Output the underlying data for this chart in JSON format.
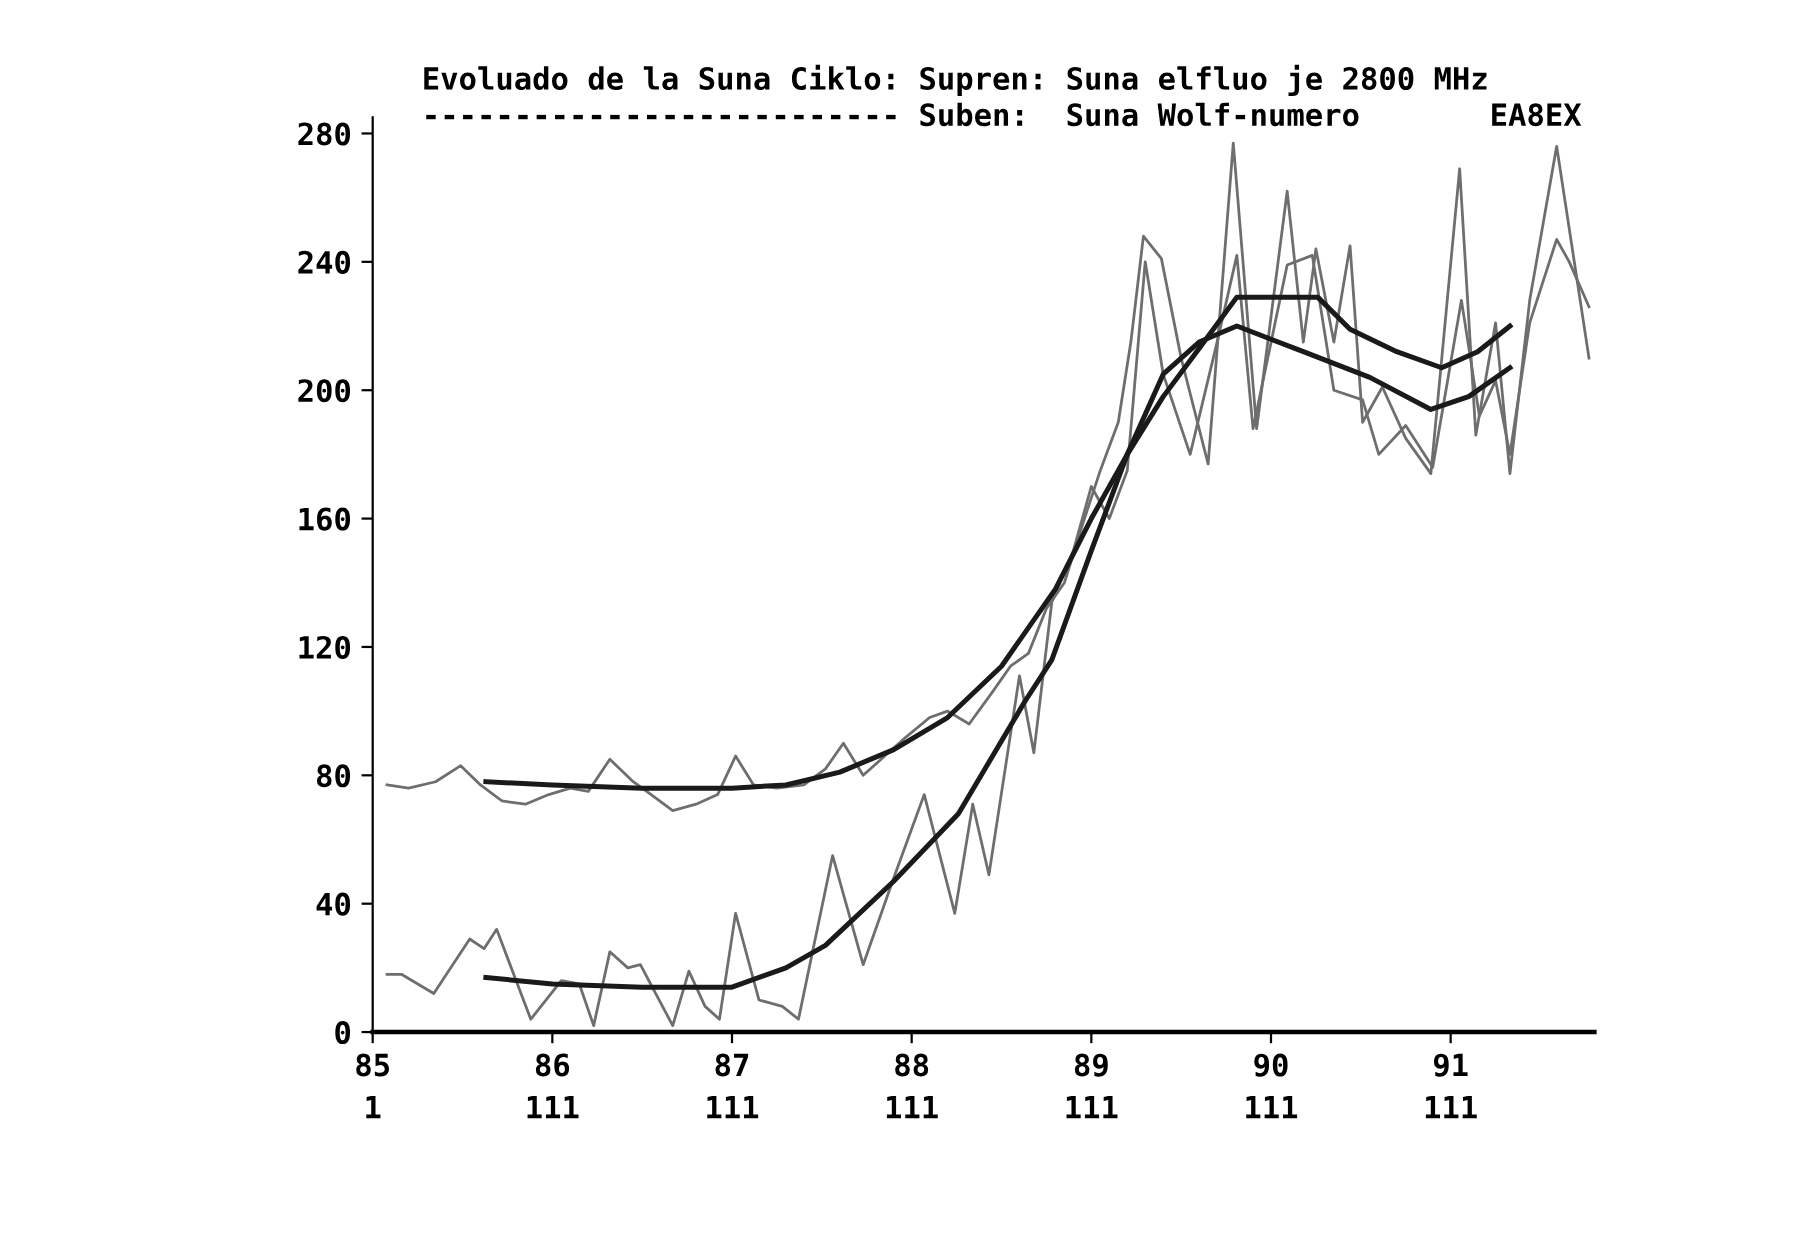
{
  "chart_data": {
    "type": "line",
    "title": "Evoluado de la Suna Ciklo: Supren: Suna elfluo je 2800 MHz",
    "annotations": [
      "-------------------------- Suben:  Suna Wolf-numero",
      "EA8EX",
      "1",
      "111",
      "111",
      "111",
      "111",
      "111",
      "111"
    ],
    "xlim": [
      85,
      91.8
    ],
    "xticks": [
      85,
      86,
      87,
      88,
      89,
      90,
      91
    ],
    "ylim": [
      0,
      285
    ],
    "yticks": [
      0,
      40,
      80,
      120,
      160,
      200,
      240,
      280
    ],
    "grid": false,
    "series": [
      {
        "color": "#6e6e6e",
        "x": [
          85.08,
          85.2,
          85.35,
          85.49,
          85.6,
          85.72,
          85.85,
          85.98,
          86.1,
          86.2,
          86.32,
          86.45,
          86.55,
          86.67,
          86.8,
          86.92,
          87.02,
          87.12,
          87.25,
          87.4,
          87.52,
          87.62,
          87.73,
          87.85,
          87.97,
          88.1,
          88.2,
          88.32,
          88.45,
          88.55,
          88.65,
          88.75,
          88.85,
          88.95,
          89.05,
          89.15,
          89.22,
          89.29,
          89.39,
          89.5,
          89.65,
          89.79,
          89.92,
          90.09,
          90.18,
          90.25,
          90.35,
          90.44,
          90.51,
          90.62,
          90.75,
          90.89,
          91.05,
          91.14,
          91.25,
          91.33,
          91.44,
          91.59,
          91.77
        ],
        "values": [
          77,
          76,
          78,
          83,
          77,
          72,
          71,
          74,
          76,
          75,
          85,
          78,
          74,
          69,
          71,
          74,
          86,
          77,
          76,
          77,
          82,
          90,
          80,
          86,
          92,
          98,
          100,
          96,
          106,
          114,
          118,
          132,
          140,
          158,
          175,
          190,
          215,
          248,
          241,
          210,
          177,
          277,
          188,
          262,
          215,
          244,
          215,
          245,
          190,
          201,
          185,
          174,
          269,
          186,
          221,
          174,
          228,
          276,
          210
        ]
      },
      {
        "color": "#6e6e6e",
        "x": [
          85.08,
          85.16,
          85.34,
          85.54,
          85.62,
          85.69,
          85.88,
          86.05,
          86.15,
          86.23,
          86.32,
          86.42,
          86.49,
          86.67,
          86.76,
          86.85,
          86.93,
          87.02,
          87.15,
          87.28,
          87.37,
          87.56,
          87.73,
          87.9,
          88.07,
          88.24,
          88.34,
          88.43,
          88.6,
          88.68,
          88.78,
          88.9,
          89.0,
          89.1,
          89.2,
          89.3,
          89.4,
          89.55,
          89.7,
          89.81,
          89.9,
          90.09,
          90.23,
          90.35,
          90.51,
          90.6,
          90.75,
          90.9,
          91.06,
          91.16,
          91.25,
          91.33,
          91.44,
          91.59,
          91.66,
          91.77
        ],
        "values": [
          18,
          18,
          12,
          29,
          26,
          32,
          4,
          16,
          15,
          2,
          25,
          20,
          21,
          2,
          19,
          8,
          4,
          37,
          10,
          8,
          4,
          55,
          21,
          48,
          74,
          37,
          71,
          49,
          111,
          87,
          134,
          150,
          170,
          160,
          175,
          240,
          205,
          180,
          215,
          242,
          188,
          239,
          242,
          200,
          197,
          180,
          189,
          176,
          228,
          192,
          203,
          180,
          221,
          247,
          240,
          226
        ]
      },
      {
        "color": "#1a1a1a",
        "x": [
          85.63,
          86.0,
          86.5,
          87.0,
          87.3,
          87.6,
          87.9,
          88.2,
          88.5,
          88.8,
          89.0,
          89.2,
          89.4,
          89.6,
          89.81,
          90.0,
          90.26,
          90.44,
          90.7,
          90.95,
          91.15,
          91.33
        ],
        "values": [
          78,
          77,
          76,
          76,
          77,
          81,
          88,
          98,
          114,
          138,
          160,
          180,
          198,
          213,
          229,
          229,
          229,
          219,
          212,
          207,
          212,
          220
        ]
      },
      {
        "color": "#1a1a1a",
        "x": [
          85.63,
          86.0,
          86.5,
          87.0,
          87.3,
          87.52,
          87.9,
          88.26,
          88.63,
          88.78,
          89.0,
          89.2,
          89.4,
          89.6,
          89.81,
          90.18,
          90.55,
          90.89,
          91.1,
          91.33
        ],
        "values": [
          17,
          15,
          14,
          14,
          20,
          27,
          47,
          68,
          103,
          116,
          150,
          180,
          205,
          215,
          220,
          212,
          204,
          194,
          198,
          207
        ]
      }
    ]
  }
}
